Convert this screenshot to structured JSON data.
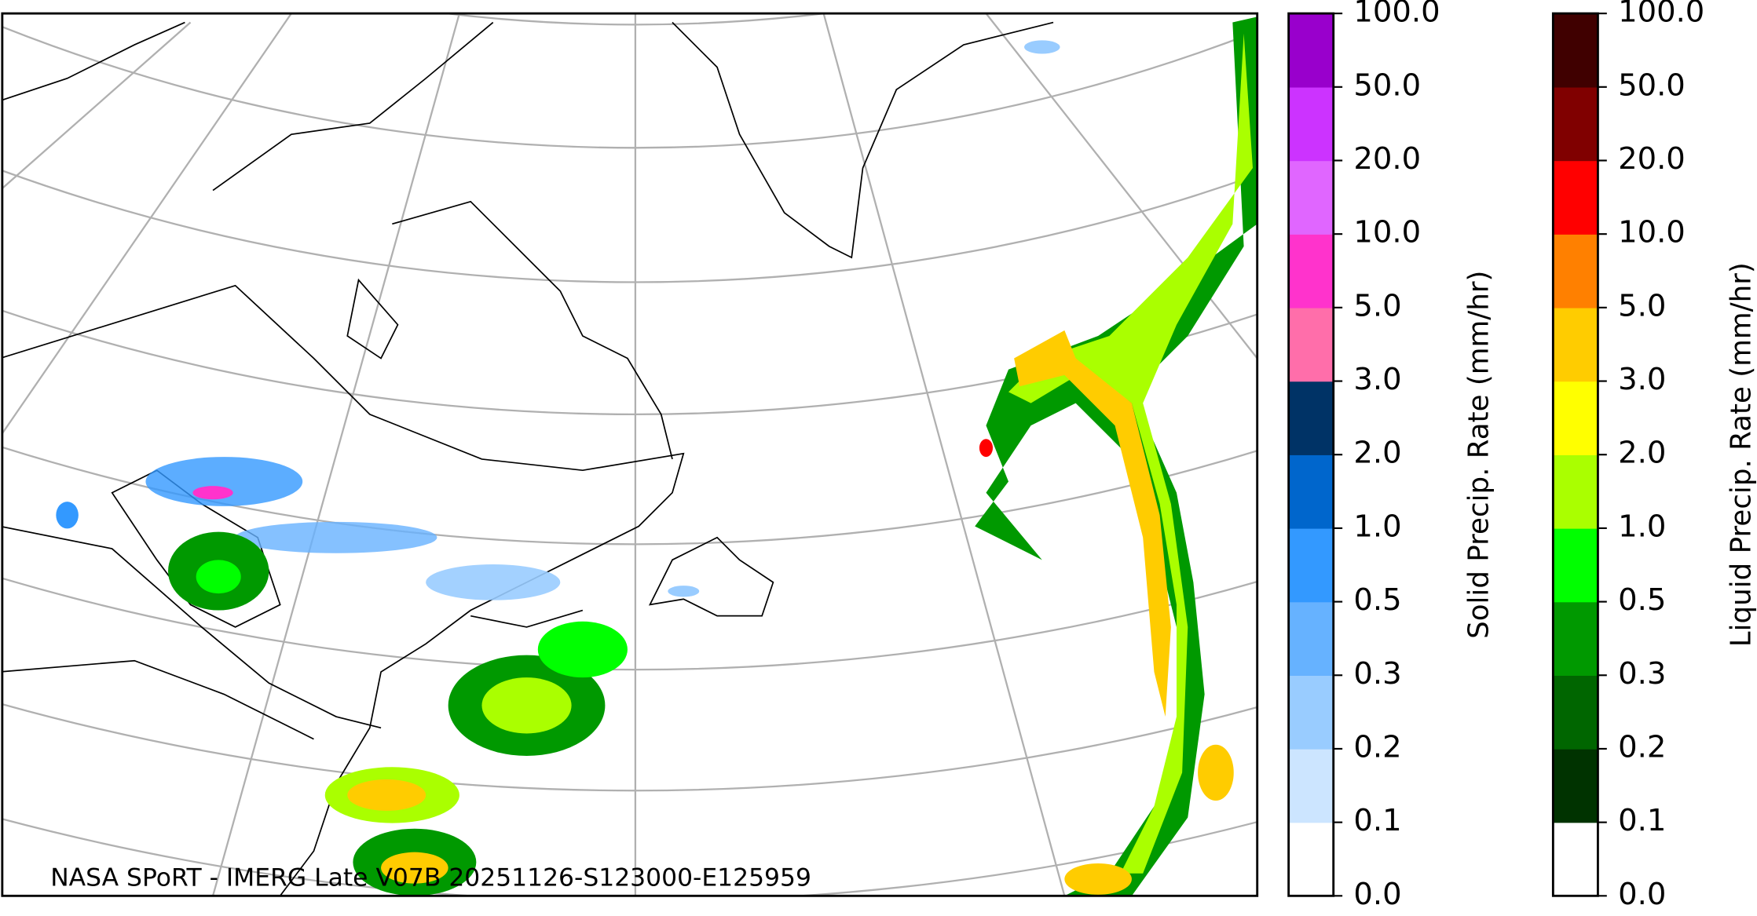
{
  "caption": "NASA SPoRT - IMERG Late V07B 20251126-S123000-E125959",
  "colorbars": [
    {
      "label": "Solid Precip. Rate (mm/hr)",
      "ticks": [
        "0.0",
        "0.1",
        "0.2",
        "0.3",
        "0.5",
        "1.0",
        "2.0",
        "3.0",
        "5.0",
        "10.0",
        "20.0",
        "50.0",
        "100.0"
      ],
      "colors": [
        "#ffffff",
        "#cce5ff",
        "#99ccff",
        "#66b2ff",
        "#3399ff",
        "#0066cc",
        "#003366",
        "#ff6eaa",
        "#ff33cc",
        "#e066ff",
        "#cc33ff",
        "#9900cc"
      ]
    },
    {
      "label": "Liquid Precip. Rate (mm/hr)",
      "ticks": [
        "0.0",
        "0.1",
        "0.2",
        "0.3",
        "0.5",
        "1.0",
        "2.0",
        "3.0",
        "5.0",
        "10.0",
        "20.0",
        "50.0",
        "100.0"
      ],
      "colors": [
        "#ffffff",
        "#003300",
        "#006600",
        "#009900",
        "#00ff00",
        "#aaff00",
        "#ffff00",
        "#ffcc00",
        "#ff8000",
        "#ff0000",
        "#800000",
        "#400000"
      ]
    }
  ]
}
